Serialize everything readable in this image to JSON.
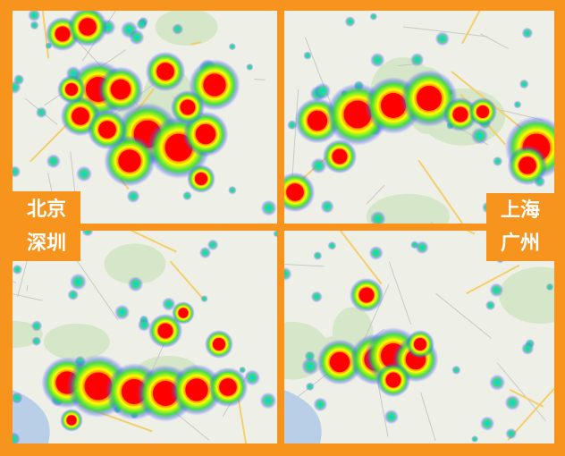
{
  "panels": [
    {
      "label": "北京"
    },
    {
      "label": "深圳"
    },
    {
      "label": "上海"
    },
    {
      "label": "广州"
    }
  ]
}
